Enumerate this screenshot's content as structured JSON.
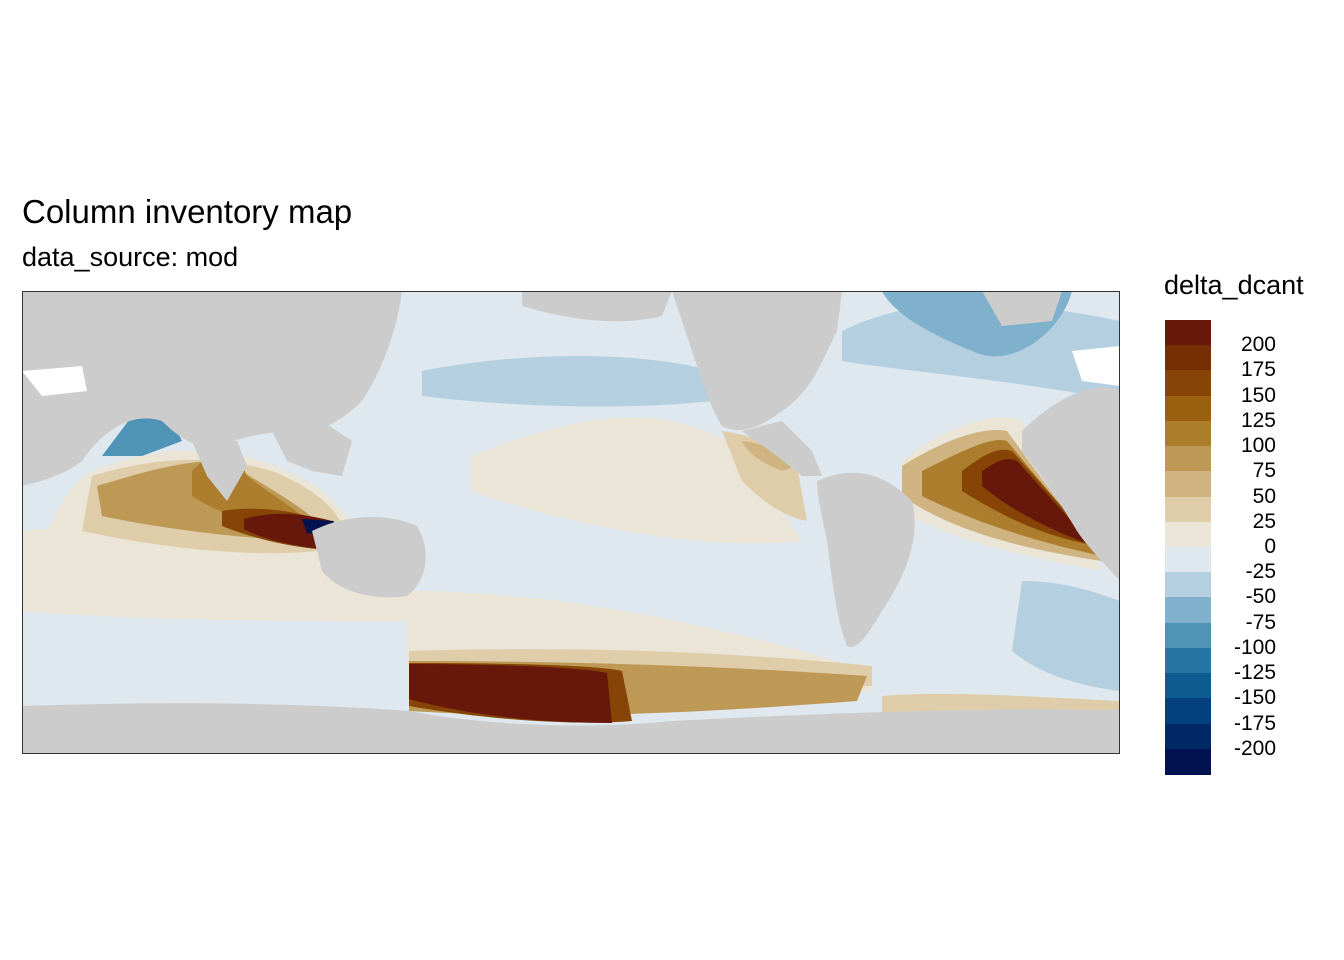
{
  "title": "Column inventory map",
  "subtitle": "data_source: mod",
  "legend": {
    "title": "delta_dcant",
    "bins": [
      {
        "color": "#67180A",
        "label": "200"
      },
      {
        "color": "#762E05",
        "label": "175"
      },
      {
        "color": "#864506",
        "label": "150"
      },
      {
        "color": "#98600F",
        "label": "125"
      },
      {
        "color": "#AC7D2C",
        "label": "100"
      },
      {
        "color": "#BE9955",
        "label": "75"
      },
      {
        "color": "#CFB481",
        "label": "50"
      },
      {
        "color": "#DFCDAA",
        "label": "25"
      },
      {
        "color": "#EBE5D8",
        "label": "0"
      },
      {
        "color": "#DEE8EE",
        "label": "-25"
      },
      {
        "color": "#B4CFE0",
        "label": "-50"
      },
      {
        "color": "#80B1CC",
        "label": "-75"
      },
      {
        "color": "#4F93B7",
        "label": "-100"
      },
      {
        "color": "#2676A3",
        "label": "-125"
      },
      {
        "color": "#0D5B91",
        "label": "-150"
      },
      {
        "color": "#04407E",
        "label": "-175"
      },
      {
        "color": "#002865",
        "label": "-200"
      },
      {
        "color": "#001350",
        "label": ""
      }
    ]
  },
  "map": {
    "land_color": "#CCCCCC",
    "missing_color": "#FFFFFF"
  }
}
